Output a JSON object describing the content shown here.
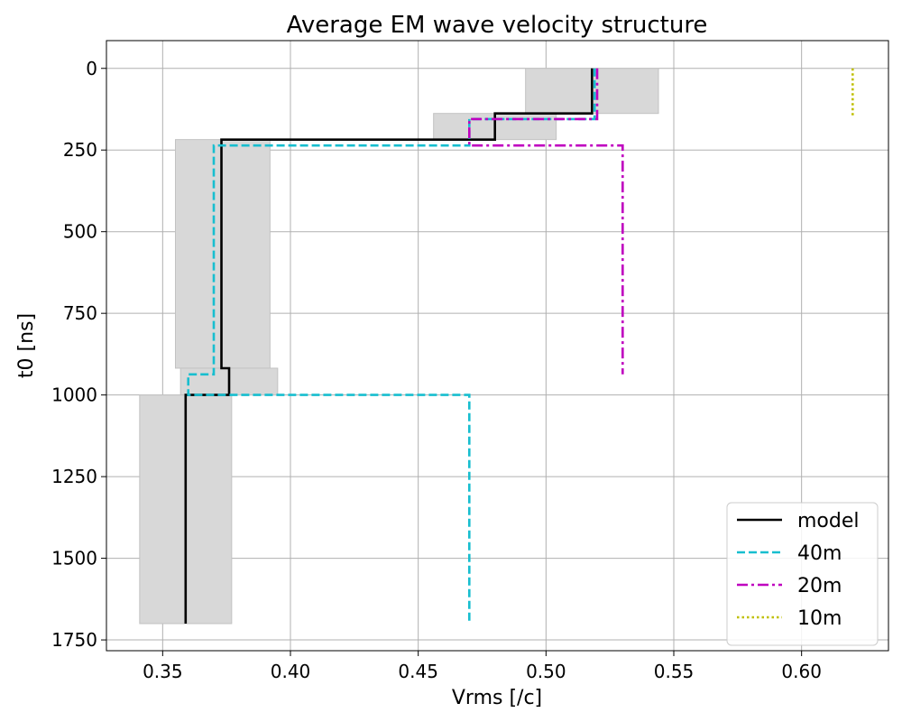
{
  "chart_data": {
    "type": "line",
    "title": "Average EM wave velocity structure",
    "xlabel": "Vrms [/c]",
    "ylabel": "t0 [ns]",
    "xlim": [
      0.328,
      0.634
    ],
    "ylim": [
      1783,
      -85
    ],
    "y_inverted": true,
    "xticks": [
      0.35,
      0.4,
      0.45,
      0.5,
      0.55,
      0.6
    ],
    "xtick_labels": [
      "0.35",
      "0.40",
      "0.45",
      "0.50",
      "0.55",
      "0.60"
    ],
    "yticks": [
      0,
      250,
      500,
      750,
      1000,
      1250,
      1500,
      1750
    ],
    "ytick_labels": [
      "0",
      "250",
      "500",
      "750",
      "1000",
      "1250",
      "1500",
      "1750"
    ],
    "grid": true,
    "legend_position": "bottom-right",
    "uncertainty_boxes": [
      {
        "x0": 0.492,
        "x1": 0.544,
        "y0": 0,
        "y1": 138
      },
      {
        "x0": 0.456,
        "x1": 0.504,
        "y0": 138,
        "y1": 218
      },
      {
        "x0": 0.355,
        "x1": 0.392,
        "y0": 218,
        "y1": 918
      },
      {
        "x0": 0.357,
        "x1": 0.395,
        "y0": 918,
        "y1": 1000
      },
      {
        "x0": 0.341,
        "x1": 0.377,
        "y0": 1000,
        "y1": 1700
      }
    ],
    "series": [
      {
        "name": "model",
        "color": "#000000",
        "dash": "solid",
        "x": [
          0.518,
          0.518,
          0.48,
          0.48,
          0.373,
          0.373,
          0.376,
          0.376,
          0.359,
          0.359
        ],
        "y": [
          0,
          138,
          138,
          218,
          218,
          918,
          918,
          1000,
          1000,
          1700
        ]
      },
      {
        "name": "40m",
        "color": "#17becf",
        "dash": "dashed",
        "x": [
          0.519,
          0.519,
          0.47,
          0.47,
          0.37,
          0.37,
          0.36,
          0.36,
          0.47,
          0.47
        ],
        "y": [
          0,
          155,
          155,
          236,
          236,
          937,
          937,
          1000,
          1000,
          1700
        ]
      },
      {
        "name": "20m",
        "color": "#bf00bf",
        "dash": "dashdot",
        "x": [
          0.52,
          0.52,
          0.47,
          0.47,
          0.53,
          0.53
        ],
        "y": [
          0,
          155,
          155,
          236,
          236,
          937
        ]
      },
      {
        "name": "10m",
        "color": "#bfbf00",
        "dash": "dotted",
        "x": [
          0.62,
          0.62
        ],
        "y": [
          0,
          150
        ]
      }
    ]
  }
}
